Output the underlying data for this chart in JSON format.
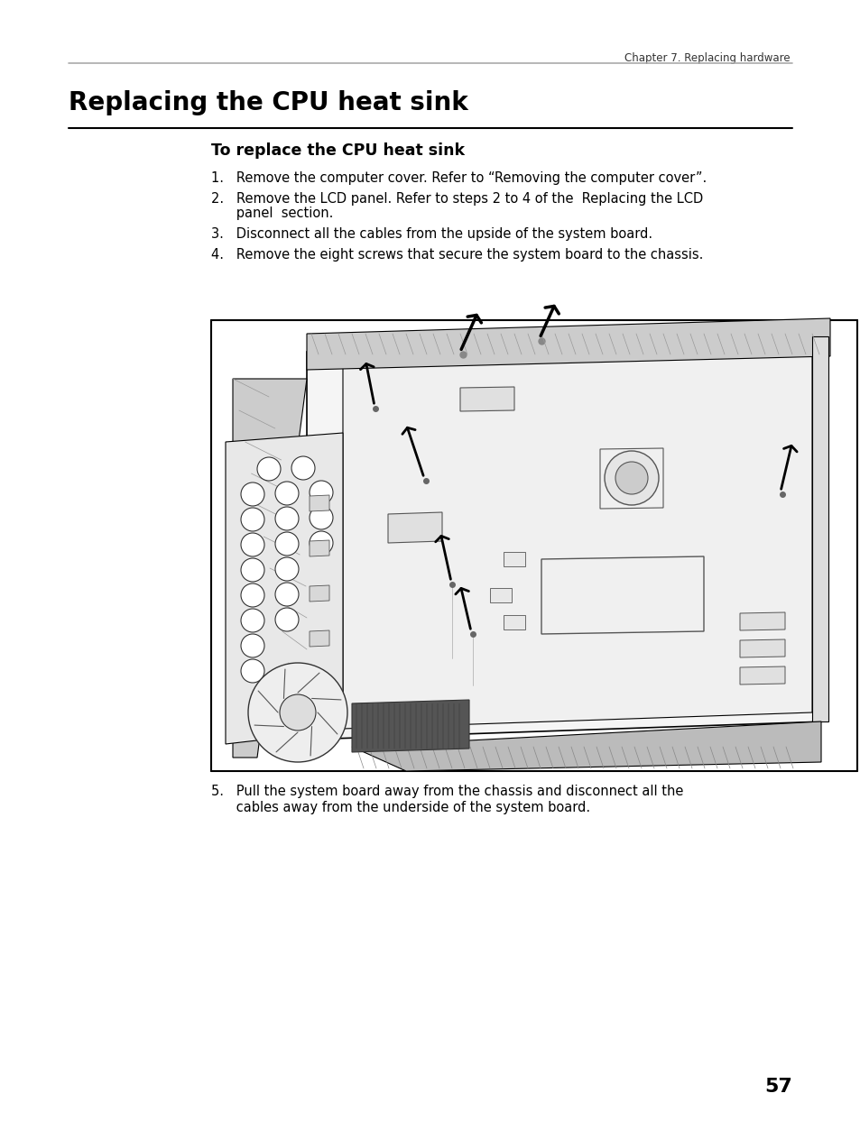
{
  "page_background": "#ffffff",
  "header_text": "Chapter 7. Replacing hardware",
  "main_title": "Replacing the CPU heat sink",
  "section_title": "To replace the CPU heat sink",
  "step1": "1.   Remove the computer cover. Refer to “Removing the computer cover”.",
  "step2a": "2.   Remove the LCD panel. Refer to steps 2 to 4 of the  Replacing the LCD",
  "step2b": "      panel  section.",
  "step3": "3.   Disconnect all the cables from the upside of the system board.",
  "step4": "4.   Remove the eight screws that secure the system board to the chassis.",
  "step5a": "5.   Pull the system board away from the chassis and disconnect all the",
  "step5b": "      cables away from the underside of the system board.",
  "page_number": "57",
  "line_color_gray": "#aaaaaa",
  "line_color_black": "#000000",
  "text_color": "#000000",
  "drawing_color": "#000000"
}
